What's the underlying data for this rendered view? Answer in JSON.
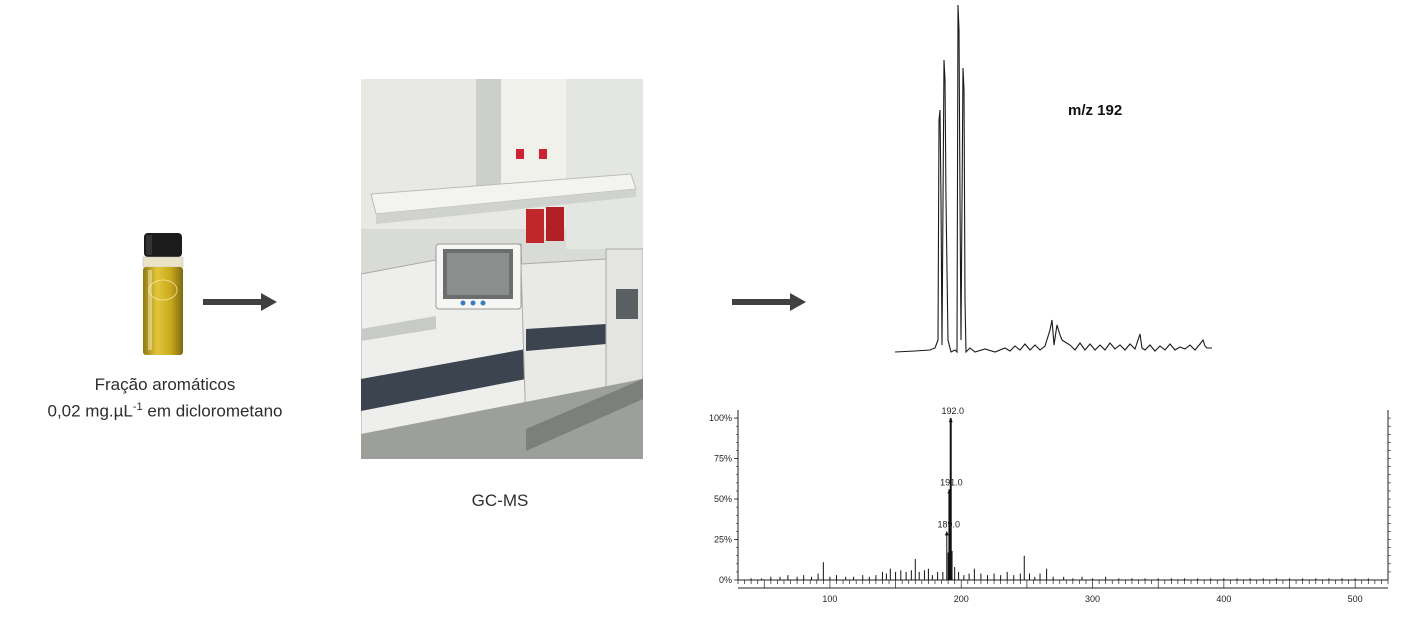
{
  "sample": {
    "title": "Fração aromáticos",
    "conc_prefix": "0,02 mg.µL",
    "conc_exp": "-1",
    "conc_suffix": " em diclorometano"
  },
  "instrument": {
    "caption": "GC-MS",
    "photo_icon": "gc-ms-instrument-photo"
  },
  "arrows": [
    "arrow-right-icon",
    "arrow-right-icon"
  ],
  "chromatogram": {
    "label": "m/z 192"
  },
  "colors": {
    "arrow": "#404040",
    "trace": "#1a1a1a",
    "vial_liquid": "#c9a81c",
    "vial_cap": "#1b1b1b"
  },
  "chart_data": {
    "type": "bar",
    "title": "",
    "xlabel": "",
    "ylabel": "",
    "xlim": [
      30,
      525
    ],
    "ylim": [
      0,
      105
    ],
    "x_ticks": [
      "100",
      "200",
      "300",
      "400",
      "500"
    ],
    "y_ticks": [
      "0%",
      "25%",
      "50%",
      "75%",
      "100%"
    ],
    "annotations": [
      {
        "text": "192.0",
        "x": 192,
        "y": 100
      },
      {
        "text": "191.0",
        "x": 191,
        "y": 56
      },
      {
        "text": "189.0",
        "x": 189,
        "y": 30
      }
    ],
    "series": [
      {
        "x": [
          40,
          48,
          55,
          62,
          68,
          75,
          80,
          86,
          91,
          95,
          100,
          105,
          112,
          118,
          125,
          130,
          135,
          140,
          143,
          146,
          150,
          154,
          158,
          162,
          165,
          168,
          172,
          175,
          178,
          182,
          186,
          189,
          190,
          191,
          192,
          193,
          195,
          198,
          202,
          206,
          210,
          215,
          220,
          225,
          230,
          235,
          240,
          245,
          248,
          252,
          256,
          260,
          265,
          270,
          278,
          285,
          292,
          300,
          310,
          320,
          330,
          340,
          350,
          360,
          370,
          380,
          390,
          400,
          410,
          420,
          430,
          440,
          450,
          460,
          470,
          480,
          490,
          500,
          510
        ],
        "values": [
          1,
          1,
          2,
          2,
          3,
          2,
          3,
          2,
          4,
          11,
          2,
          3,
          2,
          2,
          3,
          2,
          3,
          5,
          4,
          7,
          5,
          6,
          5,
          6,
          13,
          5,
          6,
          7,
          3,
          5,
          5,
          30,
          17,
          56,
          100,
          18,
          8,
          5,
          3,
          4,
          7,
          4,
          3,
          4,
          3,
          5,
          3,
          4,
          15,
          4,
          2,
          4,
          7,
          2,
          2,
          1,
          2,
          1,
          2,
          1,
          1,
          1,
          1,
          1,
          1,
          1,
          1,
          1,
          1,
          1,
          1,
          1,
          1,
          1,
          1,
          1,
          1,
          1,
          1
        ]
      }
    ]
  }
}
